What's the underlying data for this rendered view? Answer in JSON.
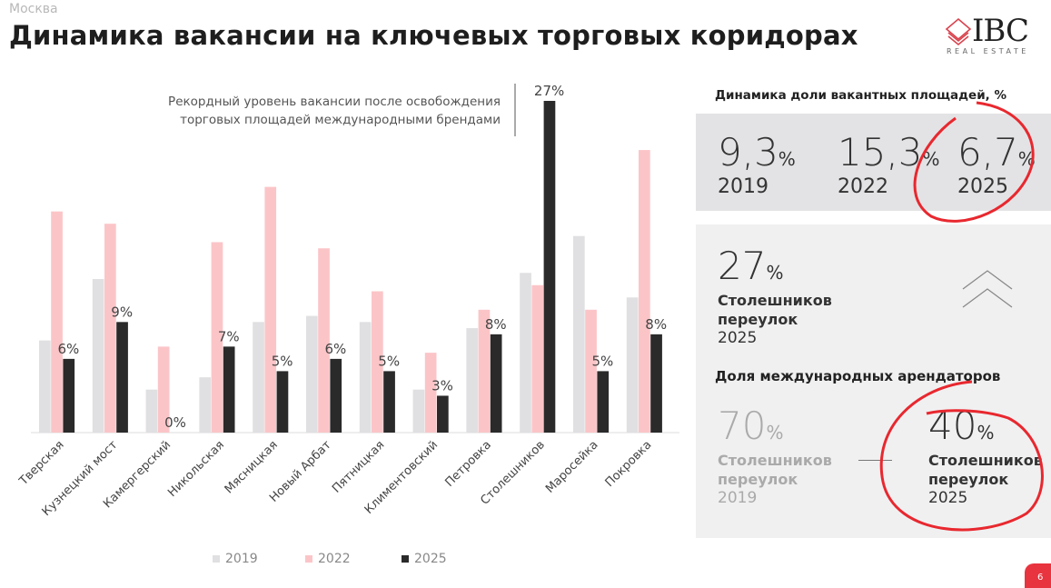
{
  "header": {
    "city": "Москва",
    "title": "Динамика вакансии на ключевых торговых коридорах"
  },
  "logo": {
    "name": "IBC",
    "tagline": "REAL ESTATE",
    "color": "#d9434e"
  },
  "chart_data": {
    "type": "bar",
    "categories": [
      "Тверская",
      "Кузнецкий мост",
      "Камергерский",
      "Никольская",
      "Мясницкая",
      "Новый Арбат",
      "Пятницкая",
      "Климентовский",
      "Петровка",
      "Столешников",
      "Маросейка",
      "Покровка"
    ],
    "series": [
      {
        "name": "2019",
        "color": "#e0e0e2",
        "values": [
          7.5,
          12.5,
          3.5,
          4.5,
          9,
          9.5,
          9,
          3.5,
          8.5,
          13,
          16,
          11
        ]
      },
      {
        "name": "2022",
        "color": "#fbc5c8",
        "values": [
          18,
          17,
          7,
          15.5,
          20,
          15,
          11.5,
          6.5,
          10,
          12,
          10,
          23
        ]
      },
      {
        "name": "2025",
        "color": "#2a2a2a",
        "values": [
          6,
          9,
          0,
          7,
          5,
          6,
          5,
          3,
          8,
          27,
          5,
          8
        ]
      }
    ],
    "data_labels": [
      "6%",
      "9%",
      "0%",
      "7%",
      "5%",
      "6%",
      "5%",
      "3%",
      "8%",
      "27%",
      "5%",
      "8%"
    ],
    "ylim": [
      0,
      27
    ],
    "grid": false,
    "legend": "bottom",
    "annotation": [
      "Рекордный уровень вакансии после освобождения",
      "торговых площадей международными брендами"
    ]
  },
  "panel": {
    "vacancy_title": "Динамика доли вакантных площадей, %",
    "vacancy": [
      {
        "value": "9,3",
        "unit": "%",
        "year": "2019"
      },
      {
        "value": "15,3",
        "unit": "%",
        "year": "2022"
      },
      {
        "value": "6,7",
        "unit": "%",
        "year": "2025"
      }
    ],
    "record": {
      "value": "27",
      "unit": "%",
      "line1": "Столешников",
      "line2": "переулок",
      "year": "2025",
      "icon": "double-chevron-up-icon"
    },
    "intl_title": "Доля международных арендаторов",
    "intl": [
      {
        "value": "70",
        "unit": "%",
        "line1": "Столешников",
        "line2": "переулок",
        "year": "2019"
      },
      {
        "value": "40",
        "unit": "%",
        "line1": "Столешников",
        "line2": "переулок",
        "year": "2025"
      }
    ]
  },
  "page_number": "6",
  "annotation_color": "#e8282f"
}
